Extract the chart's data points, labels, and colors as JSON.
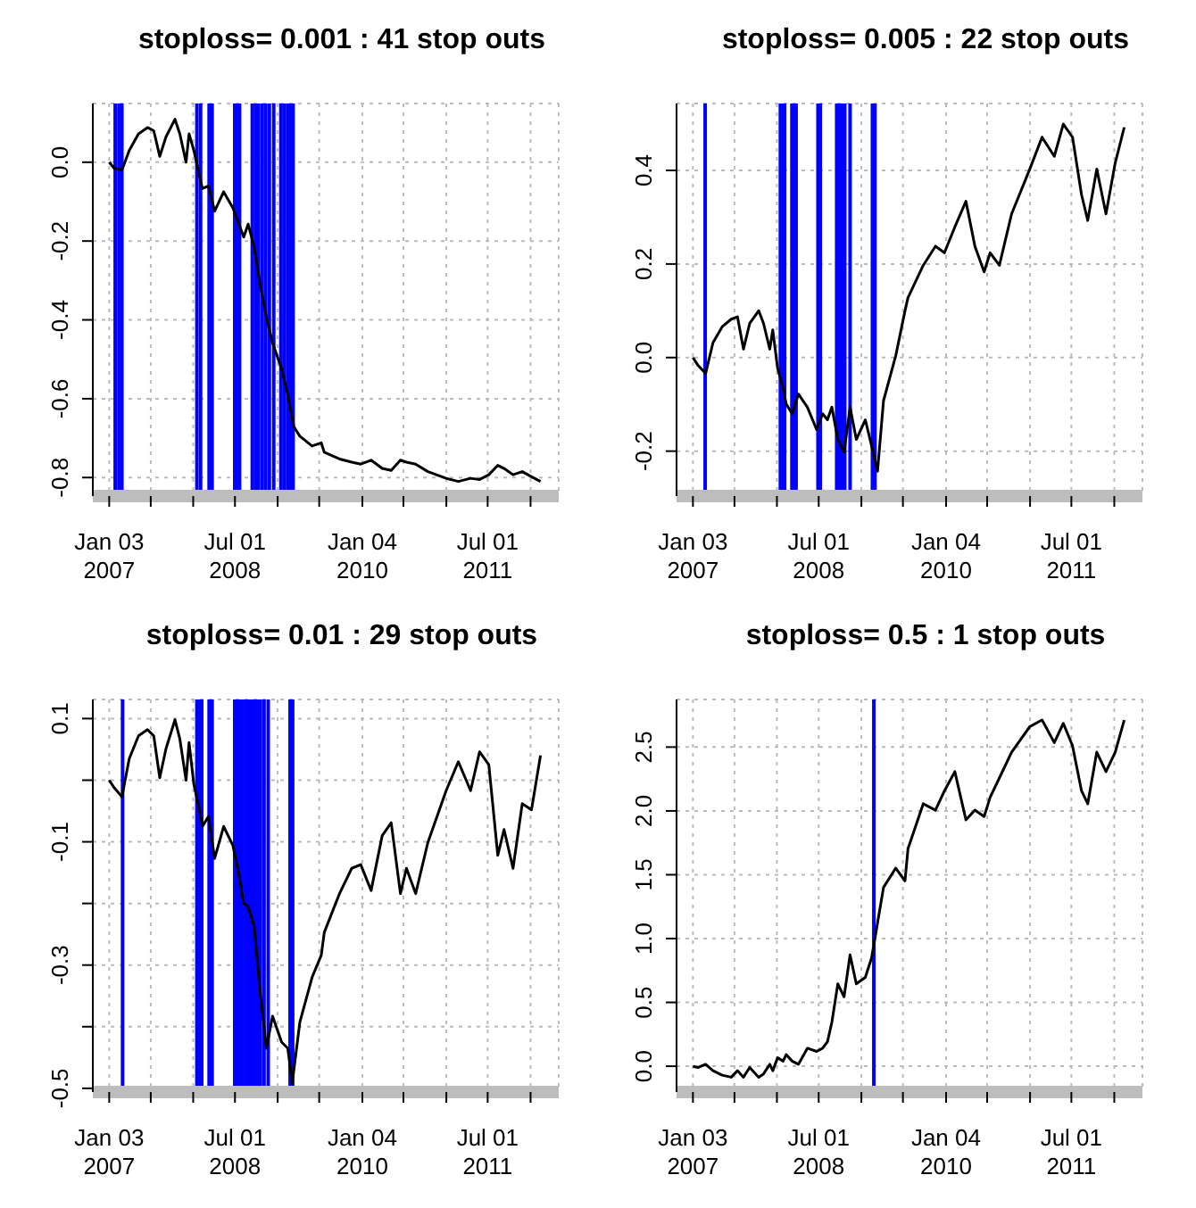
{
  "chart_data": [
    {
      "type": "line",
      "title": "stoploss= 0.001 : 41 stop outs",
      "grid": true,
      "x": [
        "2007-01-03",
        "2007-01-24",
        "2007-02-27",
        "2007-03-31",
        "2007-05-10",
        "2007-06-18",
        "2007-07-15",
        "2007-08-10",
        "2007-09-06",
        "2007-10-15",
        "2007-11-05",
        "2007-12-02",
        "2007-12-15",
        "2008-01-05",
        "2008-01-29",
        "2008-02-11",
        "2008-03-08",
        "2008-04-04",
        "2008-05-13",
        "2008-06-22",
        "2008-07-18",
        "2008-08-08",
        "2008-08-27",
        "2008-09-22",
        "2008-10-19",
        "2008-11-14",
        "2008-12-11",
        "2009-01-19",
        "2009-02-15",
        "2009-03-13",
        "2009-04-08",
        "2009-05-31",
        "2009-07-10",
        "2009-07-23",
        "2009-09-27",
        "2009-11-19",
        "2009-12-28",
        "2010-02-11",
        "2010-03-31",
        "2010-05-09",
        "2010-06-18",
        "2010-07-14",
        "2010-08-23",
        "2010-10-15",
        "2011-01-02",
        "2011-02-24",
        "2011-04-18",
        "2011-05-27",
        "2011-07-06",
        "2011-08-14",
        "2011-09-10",
        "2011-10-19",
        "2011-11-28",
        "2012-01-07",
        "2012-02-15"
      ],
      "series": [
        {
          "color": "#000000",
          "values": [
            0,
            -0.015,
            -0.02,
            0.03,
            0.072,
            0.088,
            0.08,
            0.015,
            0.064,
            0.109,
            0.072,
            0,
            0.072,
            0.03,
            -0.034,
            -0.067,
            -0.06,
            -0.124,
            -0.075,
            -0.116,
            -0.157,
            -0.19,
            -0.157,
            -0.214,
            -0.312,
            -0.393,
            -0.459,
            -0.524,
            -0.589,
            -0.671,
            -0.695,
            -0.72,
            -0.712,
            -0.736,
            -0.753,
            -0.761,
            -0.766,
            -0.756,
            -0.777,
            -0.782,
            -0.756,
            -0.761,
            -0.766,
            -0.785,
            -0.802,
            -0.81,
            -0.802,
            -0.805,
            -0.793,
            -0.769,
            -0.777,
            -0.793,
            -0.785,
            -0.798,
            -0.81
          ]
        }
      ],
      "xlim": [
        "2006-10-24",
        "2012-05-04"
      ],
      "xticks": [
        {
          "value": "2007-01-03",
          "label": "Jan 03\n2007"
        },
        {
          "value": "2007-07-02",
          "label": null
        },
        {
          "value": "2008-01-02",
          "label": null
        },
        {
          "value": "2008-07-01",
          "label": "Jul 01\n2008"
        },
        {
          "value": "2009-01-02",
          "label": null
        },
        {
          "value": "2009-07-01",
          "label": null
        },
        {
          "value": "2010-01-04",
          "label": "Jan 04\n2010"
        },
        {
          "value": "2010-07-01",
          "label": null
        },
        {
          "value": "2011-01-03",
          "label": null
        },
        {
          "value": "2011-07-01",
          "label": "Jul 01\n2011"
        },
        {
          "value": "2012-01-03",
          "label": null
        }
      ],
      "ylim": [
        -0.847,
        0.149
      ],
      "yticks": [
        -0.8,
        -0.6,
        -0.4,
        -0.2,
        {
          "value": 0,
          "label": "0.0"
        }
      ],
      "ref_lines": [
        {
          "axis": "x",
          "value": "2007-01-29",
          "color": "#0000ff"
        },
        {
          "axis": "x",
          "value": "2007-02-14",
          "color": "#0000ff"
        },
        {
          "axis": "x",
          "value": "2007-02-27",
          "color": "#0000ff"
        },
        {
          "axis": "x",
          "value": "2008-01-18",
          "color": "#0000ff"
        },
        {
          "axis": "x",
          "value": "2008-02-03",
          "color": "#0000ff"
        },
        {
          "axis": "x",
          "value": "2008-03-11",
          "color": "#0000ff"
        },
        {
          "axis": "x",
          "value": "2008-03-24",
          "color": "#0000ff"
        },
        {
          "axis": "x",
          "value": "2008-06-30",
          "color": "#0000ff"
        },
        {
          "axis": "x",
          "value": "2008-07-10",
          "color": "#0000ff"
        },
        {
          "axis": "x",
          "value": "2008-07-21",
          "color": "#0000ff"
        },
        {
          "axis": "x",
          "value": "2008-09-14",
          "color": "#0000ff"
        },
        {
          "axis": "x",
          "value": "2008-09-28",
          "color": "#0000ff"
        },
        {
          "axis": "x",
          "value": "2008-10-11",
          "color": "#0000ff"
        },
        {
          "axis": "x",
          "value": "2008-10-27",
          "color": "#0000ff"
        },
        {
          "axis": "x",
          "value": "2008-11-11",
          "color": "#0000ff"
        },
        {
          "axis": "x",
          "value": "2008-11-27",
          "color": "#0000ff"
        },
        {
          "axis": "x",
          "value": "2008-12-16",
          "color": "#0000ff"
        },
        {
          "axis": "x",
          "value": "2009-01-16",
          "color": "#0000ff"
        },
        {
          "axis": "x",
          "value": "2009-01-30",
          "color": "#0000ff"
        },
        {
          "axis": "x",
          "value": "2009-02-14",
          "color": "#0000ff"
        },
        {
          "axis": "x",
          "value": "2009-02-28",
          "color": "#0000ff"
        },
        {
          "axis": "x",
          "value": "2009-03-10",
          "color": "#0000ff"
        }
      ]
    },
    {
      "type": "line",
      "title": "stoploss= 0.005 : 22 stop outs",
      "grid": true,
      "x": [
        "2007-01-03",
        "2007-01-24",
        "2007-02-27",
        "2007-03-31",
        "2007-05-10",
        "2007-06-18",
        "2007-07-15",
        "2007-08-10",
        "2007-09-06",
        "2007-10-15",
        "2007-11-05",
        "2007-12-02",
        "2007-12-15",
        "2008-01-05",
        "2008-01-29",
        "2008-02-11",
        "2008-03-08",
        "2008-04-04",
        "2008-05-13",
        "2008-06-22",
        "2008-07-18",
        "2008-08-08",
        "2008-08-27",
        "2008-09-22",
        "2008-10-19",
        "2008-11-14",
        "2008-12-11",
        "2009-01-19",
        "2009-02-15",
        "2009-03-13",
        "2009-04-08",
        "2009-05-31",
        "2009-07-10",
        "2009-07-23",
        "2009-09-27",
        "2009-11-19",
        "2009-12-28",
        "2010-02-11",
        "2010-03-31",
        "2010-05-09",
        "2010-06-18",
        "2010-07-14",
        "2010-08-23",
        "2010-10-15",
        "2011-01-02",
        "2011-02-24",
        "2011-04-18",
        "2011-05-27",
        "2011-07-06",
        "2011-08-14",
        "2011-09-10",
        "2011-10-19",
        "2011-11-28",
        "2012-01-07",
        "2012-02-15"
      ],
      "series": [
        {
          "color": "#000000",
          "values": [
            0,
            -0.016,
            -0.034,
            0.032,
            0.066,
            0.082,
            0.087,
            0.018,
            0.073,
            0.1,
            0.073,
            0.018,
            0.059,
            -0.023,
            -0.065,
            -0.099,
            -0.12,
            -0.078,
            -0.106,
            -0.154,
            -0.12,
            -0.133,
            -0.106,
            -0.175,
            -0.202,
            -0.106,
            -0.175,
            -0.133,
            -0.188,
            -0.243,
            -0.092,
            0.004,
            0.1,
            0.128,
            0.197,
            0.238,
            0.224,
            0.279,
            0.334,
            0.238,
            0.183,
            0.224,
            0.197,
            0.307,
            0.403,
            0.471,
            0.43,
            0.499,
            0.471,
            0.348,
            0.293,
            0.403,
            0.307,
            0.416,
            0.492
          ]
        }
      ],
      "xlim": [
        "2006-10-24",
        "2012-05-04"
      ],
      "xticks": [
        {
          "value": "2007-01-03",
          "label": "Jan 03\n2007"
        },
        {
          "value": "2007-07-02",
          "label": null
        },
        {
          "value": "2008-01-02",
          "label": null
        },
        {
          "value": "2008-07-01",
          "label": "Jul 01\n2008"
        },
        {
          "value": "2009-01-02",
          "label": null
        },
        {
          "value": "2009-07-01",
          "label": null
        },
        {
          "value": "2010-01-04",
          "label": "Jan 04\n2010"
        },
        {
          "value": "2010-07-01",
          "label": null
        },
        {
          "value": "2011-01-03",
          "label": null
        },
        {
          "value": "2011-07-01",
          "label": "Jul 01\n2011"
        },
        {
          "value": "2012-01-03",
          "label": null
        }
      ],
      "ylim": [
        -0.296,
        0.543
      ],
      "yticks": [
        -0.2,
        {
          "value": 0,
          "label": "0.0"
        },
        0.2,
        0.4
      ],
      "ref_lines": [
        {
          "axis": "x",
          "value": "2007-02-25",
          "color": "#0000ff"
        },
        {
          "axis": "x",
          "value": "2008-01-17",
          "color": "#0000ff"
        },
        {
          "axis": "x",
          "value": "2008-01-27",
          "color": "#0000ff"
        },
        {
          "axis": "x",
          "value": "2008-02-04",
          "color": "#0000ff"
        },
        {
          "axis": "x",
          "value": "2008-03-07",
          "color": "#0000ff"
        },
        {
          "axis": "x",
          "value": "2008-03-17",
          "color": "#0000ff"
        },
        {
          "axis": "x",
          "value": "2008-03-25",
          "color": "#0000ff"
        },
        {
          "axis": "x",
          "value": "2008-06-28",
          "color": "#0000ff"
        },
        {
          "axis": "x",
          "value": "2008-07-08",
          "color": "#0000ff"
        },
        {
          "axis": "x",
          "value": "2008-09-17",
          "color": "#0000ff"
        },
        {
          "axis": "x",
          "value": "2008-09-30",
          "color": "#0000ff"
        },
        {
          "axis": "x",
          "value": "2008-10-11",
          "color": "#0000ff"
        },
        {
          "axis": "x",
          "value": "2008-10-22",
          "color": "#0000ff"
        },
        {
          "axis": "x",
          "value": "2008-11-14",
          "color": "#0000ff"
        },
        {
          "axis": "x",
          "value": "2009-02-19",
          "color": "#0000ff"
        },
        {
          "axis": "x",
          "value": "2009-03-02",
          "color": "#0000ff"
        }
      ]
    },
    {
      "type": "line",
      "title": "stoploss= 0.01 : 29 stop outs",
      "grid": true,
      "x": [
        "2007-01-03",
        "2007-01-24",
        "2007-02-27",
        "2007-03-31",
        "2007-05-10",
        "2007-06-18",
        "2007-07-15",
        "2007-08-10",
        "2007-09-06",
        "2007-10-15",
        "2007-11-05",
        "2007-12-02",
        "2007-12-15",
        "2008-01-05",
        "2008-01-29",
        "2008-02-11",
        "2008-03-08",
        "2008-04-04",
        "2008-05-13",
        "2008-06-22",
        "2008-07-18",
        "2008-08-08",
        "2008-08-27",
        "2008-09-22",
        "2008-10-19",
        "2008-11-14",
        "2008-12-11",
        "2009-01-19",
        "2009-02-15",
        "2009-03-06",
        "2009-04-08",
        "2009-05-31",
        "2009-07-10",
        "2009-07-23",
        "2009-09-27",
        "2009-11-19",
        "2009-12-28",
        "2010-02-11",
        "2010-03-31",
        "2010-05-09",
        "2010-06-18",
        "2010-07-14",
        "2010-08-23",
        "2010-10-15",
        "2011-01-02",
        "2011-02-24",
        "2011-04-18",
        "2011-05-27",
        "2011-07-06",
        "2011-08-14",
        "2011-09-10",
        "2011-10-19",
        "2011-11-28",
        "2012-01-07",
        "2012-02-15"
      ],
      "series": [
        {
          "color": "#000000",
          "values": [
            0,
            -0.012,
            -0.027,
            0.035,
            0.072,
            0.082,
            0.072,
            0.004,
            0.051,
            0.098,
            0.067,
            0,
            0.061,
            -0.007,
            -0.048,
            -0.075,
            -0.059,
            -0.127,
            -0.075,
            -0.106,
            -0.153,
            -0.2,
            -0.205,
            -0.237,
            -0.346,
            -0.435,
            -0.383,
            -0.425,
            -0.435,
            -0.492,
            -0.393,
            -0.32,
            -0.284,
            -0.247,
            -0.184,
            -0.143,
            -0.137,
            -0.179,
            -0.09,
            -0.069,
            -0.184,
            -0.143,
            -0.184,
            -0.101,
            -0.017,
            0.03,
            -0.017,
            0.046,
            0.025,
            -0.122,
            -0.08,
            -0.143,
            -0.038,
            -0.048,
            0.04
          ]
        }
      ],
      "xlim": [
        "2006-10-24",
        "2012-05-04"
      ],
      "xticks": [
        {
          "value": "2007-01-03",
          "label": "Jan 03\n2007"
        },
        {
          "value": "2007-07-02",
          "label": null
        },
        {
          "value": "2008-01-02",
          "label": null
        },
        {
          "value": "2008-07-01",
          "label": "Jul 01\n2008"
        },
        {
          "value": "2009-01-02",
          "label": null
        },
        {
          "value": "2009-07-01",
          "label": null
        },
        {
          "value": "2010-01-04",
          "label": "Jan 04\n2010"
        },
        {
          "value": "2010-07-01",
          "label": null
        },
        {
          "value": "2011-01-03",
          "label": null
        },
        {
          "value": "2011-07-01",
          "label": "Jul 01\n2011"
        },
        {
          "value": "2012-01-03",
          "label": null
        }
      ],
      "ylim": [
        -0.506,
        0.131
      ],
      "yticks": [
        -0.5,
        {
          "value": -0.4,
          "label": null
        },
        -0.3,
        {
          "value": -0.2,
          "label": null
        },
        -0.1,
        {
          "value": 0,
          "label": null
        },
        0.1
      ],
      "ref_lines": [
        {
          "axis": "x",
          "value": "2007-03-02",
          "color": "#0000ff"
        },
        {
          "axis": "x",
          "value": "2008-01-18",
          "color": "#0000ff"
        },
        {
          "axis": "x",
          "value": "2008-01-29",
          "color": "#0000ff"
        },
        {
          "axis": "x",
          "value": "2008-02-08",
          "color": "#0000ff"
        },
        {
          "axis": "x",
          "value": "2008-03-11",
          "color": "#0000ff"
        },
        {
          "axis": "x",
          "value": "2008-03-24",
          "color": "#0000ff"
        },
        {
          "axis": "x",
          "value": "2008-06-30",
          "color": "#0000ff"
        },
        {
          "axis": "x",
          "value": "2008-07-10",
          "color": "#0000ff"
        },
        {
          "axis": "x",
          "value": "2008-07-21",
          "color": "#0000ff"
        },
        {
          "axis": "x",
          "value": "2008-08-03",
          "color": "#0000ff"
        },
        {
          "axis": "x",
          "value": "2008-08-16",
          "color": "#0000ff"
        },
        {
          "axis": "x",
          "value": "2008-08-27",
          "color": "#0000ff"
        },
        {
          "axis": "x",
          "value": "2008-09-09",
          "color": "#0000ff"
        },
        {
          "axis": "x",
          "value": "2008-09-22",
          "color": "#0000ff"
        },
        {
          "axis": "x",
          "value": "2008-10-05",
          "color": "#0000ff"
        },
        {
          "axis": "x",
          "value": "2008-10-19",
          "color": "#0000ff"
        },
        {
          "axis": "x",
          "value": "2008-11-04",
          "color": "#0000ff"
        },
        {
          "axis": "x",
          "value": "2008-11-22",
          "color": "#0000ff"
        },
        {
          "axis": "x",
          "value": "2009-02-25",
          "color": "#0000ff"
        },
        {
          "axis": "x",
          "value": "2009-03-08",
          "color": "#0000ff"
        }
      ]
    },
    {
      "type": "line",
      "title": "stoploss= 0.5 : 1 stop outs",
      "grid": true,
      "x": [
        "2007-01-03",
        "2007-01-24",
        "2007-02-27",
        "2007-03-31",
        "2007-05-10",
        "2007-06-18",
        "2007-07-15",
        "2007-08-10",
        "2007-09-06",
        "2007-10-15",
        "2007-11-05",
        "2007-12-02",
        "2007-12-15",
        "2008-01-05",
        "2008-01-29",
        "2008-02-11",
        "2008-03-08",
        "2008-04-04",
        "2008-05-13",
        "2008-06-22",
        "2008-07-18",
        "2008-08-08",
        "2008-08-27",
        "2008-09-22",
        "2008-10-19",
        "2008-11-14",
        "2008-12-11",
        "2009-01-19",
        "2009-02-15",
        "2009-03-06",
        "2009-04-08",
        "2009-05-31",
        "2009-07-10",
        "2009-07-23",
        "2009-09-27",
        "2009-11-19",
        "2009-12-28",
        "2010-02-11",
        "2010-03-31",
        "2010-05-09",
        "2010-06-18",
        "2010-07-14",
        "2010-08-23",
        "2010-10-15",
        "2011-01-02",
        "2011-02-24",
        "2011-04-18",
        "2011-05-27",
        "2011-07-06",
        "2011-08-14",
        "2011-09-10",
        "2011-10-19",
        "2011-11-28",
        "2012-01-07",
        "2012-02-15"
      ],
      "series": [
        {
          "color": "#000000",
          "values": [
            0,
            -0.01,
            0.015,
            -0.035,
            -0.07,
            -0.086,
            -0.035,
            -0.086,
            -0.01,
            -0.086,
            -0.06,
            0.015,
            -0.035,
            0.066,
            0.04,
            0.091,
            0.04,
            0.015,
            0.141,
            0.116,
            0.141,
            0.192,
            0.343,
            0.645,
            0.544,
            0.872,
            0.645,
            0.696,
            0.847,
            1.048,
            1.401,
            1.552,
            1.452,
            1.704,
            2.056,
            2.006,
            2.157,
            2.308,
            1.93,
            2.006,
            1.956,
            2.107,
            2.258,
            2.46,
            2.661,
            2.712,
            2.535,
            2.686,
            2.51,
            2.157,
            2.056,
            2.46,
            2.308,
            2.46,
            2.712
          ]
        }
      ],
      "xlim": [
        "2006-10-24",
        "2012-05-04"
      ],
      "xticks": [
        {
          "value": "2007-01-03",
          "label": "Jan 03\n2007"
        },
        {
          "value": "2007-07-02",
          "label": null
        },
        {
          "value": "2008-01-02",
          "label": null
        },
        {
          "value": "2008-07-01",
          "label": "Jul 01\n2008"
        },
        {
          "value": "2009-01-02",
          "label": null
        },
        {
          "value": "2009-07-01",
          "label": null
        },
        {
          "value": "2010-01-04",
          "label": "Jan 04\n2010"
        },
        {
          "value": "2010-07-01",
          "label": null
        },
        {
          "value": "2011-01-03",
          "label": null
        },
        {
          "value": "2011-07-01",
          "label": "Jul 01\n2011"
        },
        {
          "value": "2012-01-03",
          "label": null
        }
      ],
      "ylim": [
        -0.202,
        2.873
      ],
      "yticks": [
        {
          "value": 0,
          "label": "0.0"
        },
        0.5,
        {
          "value": 1,
          "label": "1.0"
        },
        1.5,
        {
          "value": 2,
          "label": "2.0"
        },
        2.5
      ],
      "ref_lines": [
        {
          "axis": "x",
          "value": "2009-02-25",
          "color": "#0000ff"
        }
      ]
    }
  ]
}
